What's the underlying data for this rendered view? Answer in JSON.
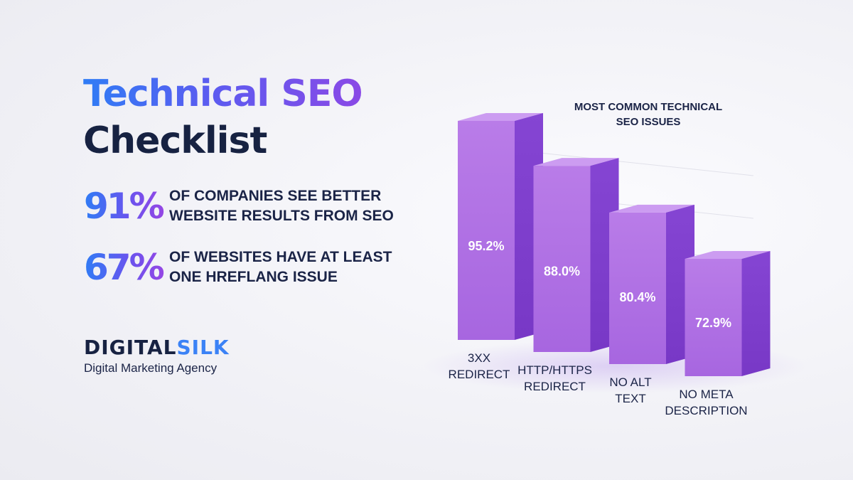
{
  "title": {
    "line1": "Technical SEO",
    "line2": "Checklist"
  },
  "stats": [
    {
      "value": "91%",
      "line1": "OF COMPANIES SEE BETTER",
      "line2": "WEBSITE RESULTS FROM SEO"
    },
    {
      "value": "67%",
      "line1": "OF WEBSITES HAVE AT LEAST",
      "line2": "ONE HREFLANG ISSUE"
    }
  ],
  "brand": {
    "part1": "DIGITAL",
    "part2": "SILK",
    "tagline": "Digital Marketing Agency"
  },
  "colors": {
    "accent_blue": "#3b82f6",
    "accent_purple": "#8a49e6",
    "navy": "#172242",
    "bar_purple": "#b57ae6"
  },
  "chart_data": {
    "type": "bar",
    "title": [
      "MOST COMMON TECHNICAL",
      "SEO ISSUES"
    ],
    "categories": [
      [
        "3XX",
        "REDIRECT"
      ],
      [
        "HTTP/HTTPS",
        "REDIRECT"
      ],
      [
        "NO ALT",
        "TEXT"
      ],
      [
        "NO META",
        "DESCRIPTION"
      ]
    ],
    "values": [
      95.2,
      88.0,
      80.4,
      72.9
    ],
    "data_labels": [
      "95.2%",
      "88.0%",
      "80.4%",
      "72.9%"
    ],
    "style": "3d"
  }
}
